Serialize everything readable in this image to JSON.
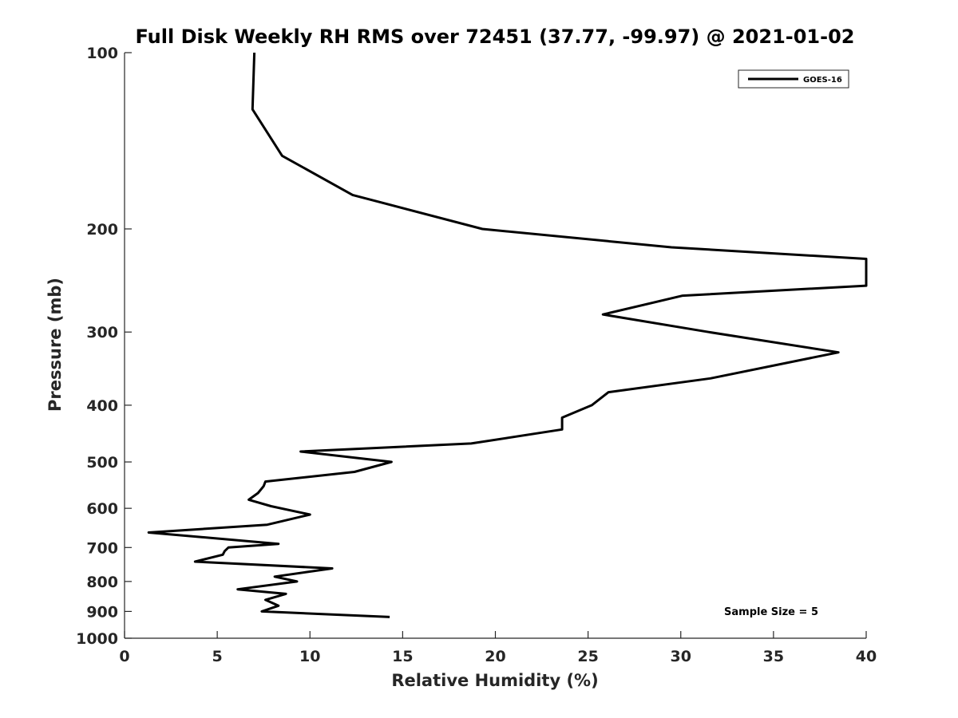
{
  "chart_data": {
    "type": "line",
    "title": "Full Disk Weekly RH RMS over 72451 (37.77, -99.97) @ 2021-01-02",
    "xlabel": "Relative Humidity (%)",
    "ylabel": "Pressure (mb)",
    "xlim": [
      0,
      40
    ],
    "ylim": [
      100,
      1000
    ],
    "y_scale": "log",
    "y_reversed": true,
    "x_ticks": [
      0,
      5,
      10,
      15,
      20,
      25,
      30,
      35,
      40
    ],
    "y_ticks": [
      100,
      200,
      300,
      400,
      500,
      600,
      700,
      800,
      900,
      1000
    ],
    "legend": {
      "placement": "top-right"
    },
    "annotation": "Sample Size = 5",
    "series": [
      {
        "name": "GOES-16",
        "color": "#000000",
        "x": [
          7.0,
          6.9,
          8.5,
          12.3,
          19.3,
          29.5,
          40.0,
          40.0,
          30.1,
          25.8,
          31.5,
          38.5,
          31.6,
          26.1,
          25.2,
          23.6,
          23.6,
          18.7,
          9.5,
          14.4,
          12.4,
          7.6,
          7.5,
          7.2,
          6.7,
          7.9,
          10.0,
          7.7,
          1.3,
          8.3,
          5.6,
          5.4,
          5.3,
          3.8,
          11.2,
          8.1,
          9.3,
          6.1,
          8.7,
          7.6,
          8.3,
          7.4,
          14.3
        ],
        "y": [
          100,
          125,
          150,
          175,
          200,
          215,
          225,
          250,
          260,
          280,
          300,
          325,
          360,
          380,
          400,
          420,
          440,
          465,
          480,
          500,
          520,
          540,
          550,
          565,
          580,
          595,
          615,
          640,
          660,
          690,
          700,
          710,
          720,
          740,
          760,
          785,
          800,
          825,
          840,
          860,
          880,
          900,
          920
        ]
      }
    ]
  }
}
